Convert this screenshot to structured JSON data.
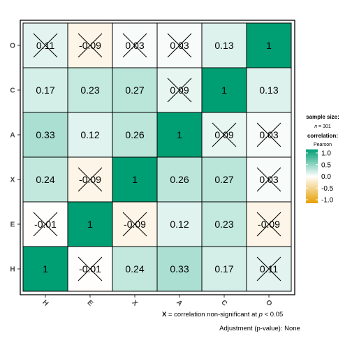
{
  "chart_data": {
    "type": "heatmap",
    "title": "",
    "xlabel": "",
    "ylabel": "",
    "x_categories": [
      "H",
      "E",
      "X",
      "A",
      "C",
      "O"
    ],
    "y_categories": [
      "O",
      "C",
      "A",
      "X",
      "E",
      "H"
    ],
    "values": [
      [
        "0.11",
        "-0.09",
        "0.03",
        "0.03",
        "0.13",
        "1"
      ],
      [
        "0.17",
        "0.23",
        "0.27",
        "0.09",
        "1",
        "0.13"
      ],
      [
        "0.33",
        "0.12",
        "0.26",
        "1",
        "0.09",
        "0.03"
      ],
      [
        "0.24",
        "-0.09",
        "1",
        "0.26",
        "0.27",
        "0.03"
      ],
      [
        "-0.01",
        "1",
        "-0.09",
        "0.12",
        "0.23",
        "-0.09"
      ],
      [
        "1",
        "-0.01",
        "0.24",
        "0.33",
        "0.17",
        "0.11"
      ]
    ],
    "nonsignificant": [
      [
        true,
        true,
        true,
        true,
        false,
        false
      ],
      [
        false,
        false,
        false,
        true,
        false,
        false
      ],
      [
        false,
        false,
        false,
        false,
        true,
        true
      ],
      [
        false,
        true,
        false,
        false,
        false,
        true
      ],
      [
        true,
        false,
        true,
        false,
        false,
        true
      ],
      [
        false,
        true,
        false,
        false,
        false,
        true
      ]
    ],
    "color_scale": {
      "low": "#E69F00",
      "mid": "#FFFFFF",
      "high": "#009E73",
      "range": [
        -1,
        1
      ]
    },
    "legend": {
      "sample_size_title": "sample size:",
      "n_label": "n",
      "n_value": "= 301",
      "correlation_title": "correlation:",
      "method": "Pearson",
      "ticks": [
        "1.0",
        "0.5",
        "0.0",
        "-0.5",
        "-1.0"
      ],
      "placement": "right"
    }
  },
  "caption": {
    "x_marker": "X",
    "text_before_p": "= correlation non-significant at",
    "p_symbol": "p",
    "threshold": "< 0.05",
    "adjustment": "Adjustment (p-value): None"
  }
}
